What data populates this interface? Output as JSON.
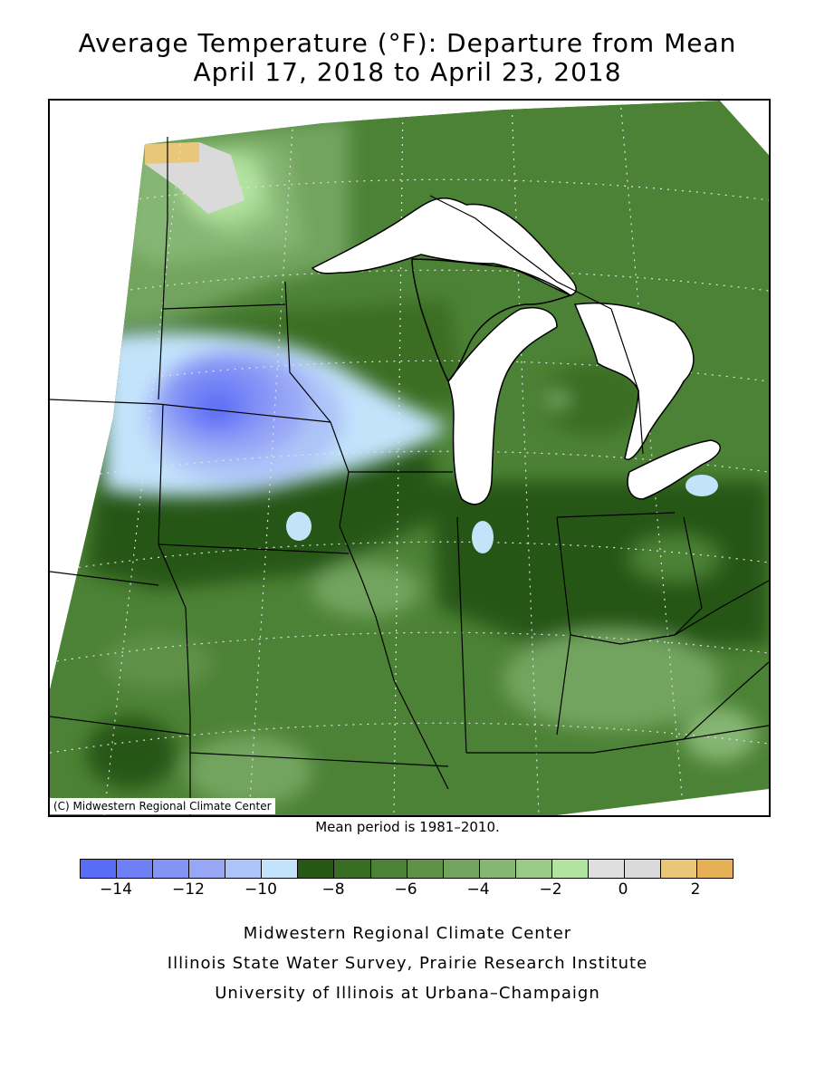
{
  "title_line1": "Average Temperature (°F): Departure from Mean",
  "title_line2": "April 17, 2018 to April 23, 2018",
  "copyright": "(C) Midwestern Regional Climate Center",
  "mean_period": "Mean period is 1981–2010.",
  "legend": {
    "colors": [
      "#5a6cf5",
      "#6f80f6",
      "#8393f6",
      "#98a6f6",
      "#adc4f8",
      "#c3e3fb",
      "#275714",
      "#3a6d24",
      "#4c8236",
      "#5f9149",
      "#72a45e",
      "#86b673",
      "#9acb86",
      "#b2e3a0",
      "#dedede",
      "#dadada",
      "#e8c77a",
      "#e8b056"
    ],
    "tick_labels": [
      "−14",
      "−12",
      "−10",
      "−8",
      "−6",
      "−4",
      "−2",
      "0",
      "2"
    ]
  },
  "footer": {
    "line1": "Midwestern Regional Climate Center",
    "line2": "Illinois State Water Survey, Prairie Research Institute",
    "line3": "University of Illinois at Urbana–Champaign"
  }
}
